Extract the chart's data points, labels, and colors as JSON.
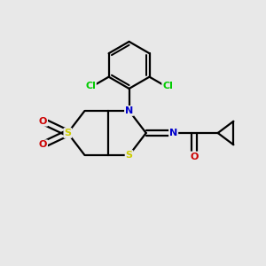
{
  "background_color": "#e8e8e8",
  "bond_color": "#000000",
  "atom_colors": {
    "S": "#cccc00",
    "N": "#0000cc",
    "O": "#cc0000",
    "Cl": "#00cc00",
    "C": "#000000"
  },
  "figsize": [
    3.0,
    3.0
  ],
  "dpi": 100
}
